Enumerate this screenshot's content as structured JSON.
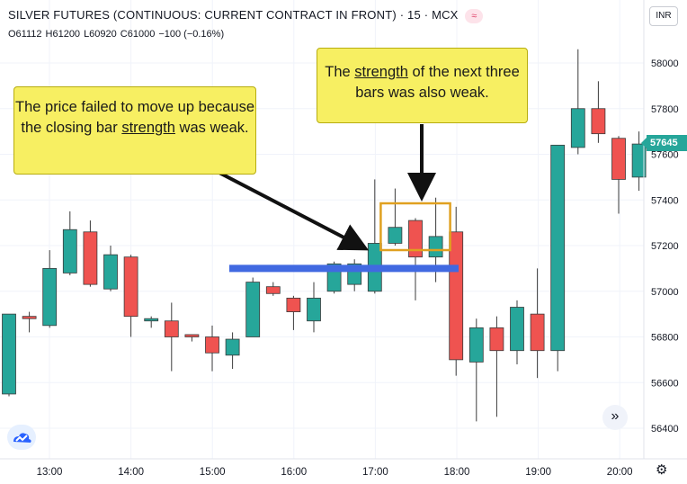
{
  "header": {
    "symbol": "SILVER FUTURES (CONTINUOUS: CURRENT CONTRACT IN FRONT)",
    "interval": "15",
    "exchange": "MCX",
    "badge_icon": "wave-icon",
    "sep": "·"
  },
  "ohlc": {
    "open": "O61112",
    "high": "H61200",
    "low": "L60920",
    "close": "C61000",
    "change": "−100 (−0.16%)"
  },
  "currency": "INR",
  "last_price": "57645",
  "annotations": {
    "left_pre": "The price failed to move up because the closing bar",
    "left_u": "strength",
    "left_post": "was weak.",
    "right_pre": "The",
    "right_u": "strength",
    "right_post": "of the next three bars was also weak."
  },
  "scroll_icon": "double-chevron-right-icon",
  "settings_icon": "gear-icon",
  "logo_icon": "cloud-logo-icon",
  "colors": {
    "up": "#26a69a",
    "down": "#ef5350",
    "level_line": "#4169e1",
    "highlight_box": "#e0a020",
    "callout_bg": "#f7ef62",
    "arrow": "#111111"
  },
  "chart_data": {
    "type": "candlestick",
    "y_axis": {
      "min": 56300,
      "max": 58100,
      "ticks": [
        56400,
        56600,
        56800,
        57000,
        57200,
        57400,
        57600,
        57800,
        58000
      ]
    },
    "x_axis": {
      "ticks": [
        "13:00",
        "14:00",
        "15:00",
        "16:00",
        "17:00",
        "18:00",
        "19:00",
        "20:00"
      ]
    },
    "candles": [
      {
        "o": 56550,
        "h": 56900,
        "l": 56540,
        "c": 56900
      },
      {
        "o": 56890,
        "h": 56910,
        "l": 56820,
        "c": 56880
      },
      {
        "o": 56850,
        "h": 57180,
        "l": 56840,
        "c": 57100
      },
      {
        "o": 57080,
        "h": 57350,
        "l": 57070,
        "c": 57270
      },
      {
        "o": 57260,
        "h": 57310,
        "l": 57020,
        "c": 57030
      },
      {
        "o": 57010,
        "h": 57200,
        "l": 57000,
        "c": 57160
      },
      {
        "o": 57150,
        "h": 57160,
        "l": 56800,
        "c": 56890
      },
      {
        "o": 56870,
        "h": 56890,
        "l": 56840,
        "c": 56880
      },
      {
        "o": 56870,
        "h": 56950,
        "l": 56650,
        "c": 56800
      },
      {
        "o": 56810,
        "h": 56810,
        "l": 56780,
        "c": 56800
      },
      {
        "o": 56800,
        "h": 56850,
        "l": 56650,
        "c": 56730
      },
      {
        "o": 56720,
        "h": 56820,
        "l": 56660,
        "c": 56790
      },
      {
        "o": 56800,
        "h": 57060,
        "l": 56800,
        "c": 57040
      },
      {
        "o": 57020,
        "h": 57040,
        "l": 56980,
        "c": 56990
      },
      {
        "o": 56970,
        "h": 56980,
        "l": 56830,
        "c": 56910
      },
      {
        "o": 56870,
        "h": 57040,
        "l": 56820,
        "c": 56970
      },
      {
        "o": 57000,
        "h": 57130,
        "l": 56990,
        "c": 57120
      },
      {
        "o": 57030,
        "h": 57140,
        "l": 57000,
        "c": 57120
      },
      {
        "o": 57000,
        "h": 57490,
        "l": 56990,
        "c": 57210
      },
      {
        "o": 57210,
        "h": 57450,
        "l": 57200,
        "c": 57280
      },
      {
        "o": 57310,
        "h": 57320,
        "l": 56960,
        "c": 57150
      },
      {
        "o": 57150,
        "h": 57410,
        "l": 57040,
        "c": 57240
      },
      {
        "o": 57260,
        "h": 57370,
        "l": 56630,
        "c": 56700
      },
      {
        "o": 56690,
        "h": 56880,
        "l": 56430,
        "c": 56840
      },
      {
        "o": 56840,
        "h": 56890,
        "l": 56450,
        "c": 56740
      },
      {
        "o": 56740,
        "h": 56960,
        "l": 56680,
        "c": 56930
      },
      {
        "o": 56900,
        "h": 57100,
        "l": 56620,
        "c": 56740
      },
      {
        "o": 56740,
        "h": 57640,
        "l": 56650,
        "c": 57640
      },
      {
        "o": 57630,
        "h": 58060,
        "l": 57600,
        "c": 57800
      },
      {
        "o": 57800,
        "h": 57920,
        "l": 57650,
        "c": 57690
      },
      {
        "o": 57670,
        "h": 57680,
        "l": 57340,
        "c": 57490
      },
      {
        "o": 57500,
        "h": 57700,
        "l": 57440,
        "c": 57645
      }
    ],
    "horizontal_level": 57100,
    "highlight_candles": [
      19,
      21
    ]
  }
}
